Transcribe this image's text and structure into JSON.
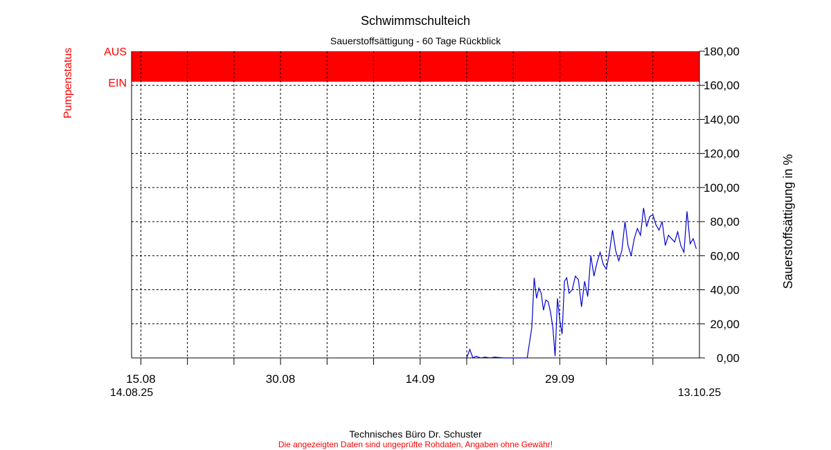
{
  "title": "Schwimmschulteich",
  "subtitle": "Sauerstoffsättigung - 60 Tage Rückblick",
  "footer": {
    "company": "Technisches Büro Dr. Schuster",
    "disclaimer": "Die angezeigten Daten sind ungeprüfte Rohdaten, Angaben ohne Gewähr!"
  },
  "colors": {
    "series": "#0000cc",
    "pump": "#ff0000",
    "grid": "#000000"
  },
  "chart_data": {
    "type": "line",
    "title": "Schwimmschulteich",
    "subtitle": "Sauerstoffsättigung - 60 Tage Rückblick",
    "ylabel": "Sauerstoffsättigung in %",
    "ylim": [
      0,
      180
    ],
    "yticks": [
      "0,00",
      "20,00",
      "40,00",
      "60,00",
      "80,00",
      "100,00",
      "120,00",
      "140,00",
      "160,00",
      "180,00"
    ],
    "xlim": [
      "2025-08-14",
      "2025-10-14"
    ],
    "xticks_major": [
      {
        "date": "2025-08-15",
        "label": "15.08"
      },
      {
        "date": "2025-08-30",
        "label": "30.08"
      },
      {
        "date": "2025-09-14",
        "label": "14.09"
      },
      {
        "date": "2025-09-29",
        "label": "29.09"
      }
    ],
    "xticks_minor": [
      "2025-08-20",
      "2025-08-25",
      "2025-09-04",
      "2025-09-09",
      "2025-09-19",
      "2025-09-24",
      "2025-10-04",
      "2025-10-09"
    ],
    "x_start_label": "14.08.25",
    "x_end_label": "13.10.25",
    "grid": true,
    "pump_status": {
      "label": "Pumpenstatus",
      "states": [
        "AUS",
        "EIN"
      ],
      "periods": [
        {
          "start": "2025-08-14",
          "end": "2025-10-14",
          "state": "AUS"
        }
      ]
    },
    "series": [
      {
        "x": [
          "2025-09-19",
          "2025-09-19",
          "2025-09-19",
          "2025-09-20",
          "2025-09-20",
          "2025-09-21",
          "2025-09-21",
          "2025-09-22",
          "2025-09-23",
          "2025-09-24",
          "2025-09-25",
          "2025-09-25",
          "2025-09-26",
          "2025-09-26",
          "2025-09-26",
          "2025-09-26",
          "2025-09-27",
          "2025-09-27",
          "2025-09-27",
          "2025-09-27",
          "2025-09-28",
          "2025-09-28",
          "2025-09-28",
          "2025-09-28",
          "2025-09-29",
          "2025-09-29",
          "2025-09-29",
          "2025-09-29",
          "2025-09-30",
          "2025-09-30",
          "2025-09-30",
          "2025-10-01",
          "2025-10-01",
          "2025-10-01",
          "2025-10-02",
          "2025-10-02",
          "2025-10-02",
          "2025-10-03",
          "2025-10-03",
          "2025-10-03",
          "2025-10-04",
          "2025-10-04",
          "2025-10-04",
          "2025-10-05",
          "2025-10-05",
          "2025-10-05",
          "2025-10-06",
          "2025-10-06",
          "2025-10-06",
          "2025-10-07",
          "2025-10-07",
          "2025-10-07",
          "2025-10-08",
          "2025-10-08",
          "2025-10-08",
          "2025-10-09",
          "2025-10-09",
          "2025-10-09",
          "2025-10-10",
          "2025-10-10",
          "2025-10-10",
          "2025-10-11",
          "2025-10-11",
          "2025-10-11",
          "2025-10-12",
          "2025-10-12",
          "2025-10-12",
          "2025-10-13",
          "2025-10-13",
          "2025-10-13"
        ],
        "y": [
          0,
          5,
          0,
          1,
          0,
          0.5,
          0,
          0.5,
          0,
          0,
          0,
          0,
          18,
          47,
          35,
          41,
          38,
          28,
          34,
          33,
          27,
          18,
          1,
          35,
          22,
          14,
          45,
          47,
          38,
          40,
          48,
          46,
          30,
          45,
          36,
          60,
          48,
          56,
          62,
          55,
          52,
          62,
          75,
          63,
          57,
          63,
          80,
          66,
          60,
          70,
          76,
          72,
          88,
          77,
          83,
          84,
          78,
          75,
          80,
          66,
          72,
          70,
          68,
          74,
          66,
          62,
          86,
          67,
          70,
          64
        ]
      }
    ]
  }
}
